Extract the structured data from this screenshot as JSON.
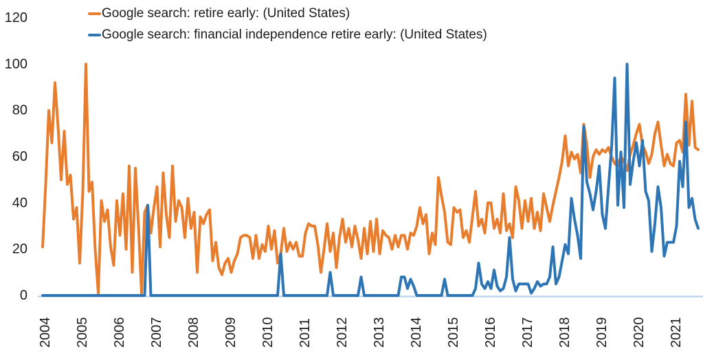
{
  "legend": {
    "items": [
      {
        "label": "Google search: retire early: (United States)",
        "color": "#E87D2E"
      },
      {
        "label": "Google search: financial independence retire early: (United States)",
        "color": "#2E75B6"
      }
    ]
  },
  "chart_data": {
    "type": "line",
    "title": "",
    "xlabel": "",
    "ylabel": "",
    "x_frequency": "monthly",
    "x_start": "2004-01",
    "x_end": "2021-09",
    "x_tick_labels": [
      "2004",
      "2005",
      "2006",
      "2007",
      "2008",
      "2009",
      "2010",
      "2011",
      "2012",
      "2013",
      "2014",
      "2015",
      "2016",
      "2017",
      "2018",
      "2019",
      "2020",
      "2021"
    ],
    "y_ticks": [
      0,
      20,
      40,
      60,
      80,
      100,
      120
    ],
    "ylim": [
      0,
      120
    ],
    "grid": false,
    "legend_position": "top-left",
    "axis_line_color": "#BDD7EE",
    "text_color": "#1c1c1c",
    "background_color": "#ffffff",
    "series": [
      {
        "name": "Google search: retire early: (United States)",
        "color": "#E87D2E",
        "values": [
          21,
          48,
          80,
          66,
          92,
          73,
          50,
          71,
          48,
          52,
          33,
          38,
          14,
          45,
          100,
          45,
          49,
          20,
          1,
          41,
          32,
          37,
          21,
          13,
          41,
          26,
          44,
          20,
          56,
          10,
          55,
          30,
          1,
          36,
          39,
          27,
          38,
          47,
          21,
          53,
          35,
          25,
          56,
          32,
          41,
          38,
          25,
          42,
          29,
          36,
          10,
          34,
          31,
          35,
          37,
          15,
          23,
          12,
          9,
          14,
          16,
          10,
          15,
          18,
          25,
          26,
          26,
          25,
          16,
          26,
          16,
          22,
          19,
          30,
          20,
          28,
          14,
          18,
          29,
          19,
          23,
          20,
          23,
          17,
          17,
          27,
          31,
          30,
          30,
          22,
          10,
          20,
          31,
          19,
          27,
          12,
          25,
          33,
          23,
          29,
          21,
          30,
          24,
          16,
          29,
          18,
          32,
          19,
          33,
          18,
          28,
          26,
          25,
          20,
          26,
          21,
          26,
          26,
          20,
          27,
          26,
          30,
          38,
          31,
          35,
          18,
          27,
          22,
          51,
          43,
          36,
          23,
          22,
          38,
          36,
          37,
          25,
          28,
          23,
          34,
          45,
          30,
          33,
          27,
          40,
          40,
          29,
          33,
          27,
          44,
          28,
          31,
          25,
          47,
          41,
          29,
          41,
          32,
          42,
          29,
          36,
          28,
          44,
          38,
          32,
          39,
          45,
          51,
          58,
          69,
          56,
          62,
          59,
          61,
          53,
          74,
          65,
          51,
          60,
          63,
          61,
          63,
          62,
          64,
          60,
          57,
          56,
          60,
          58,
          54,
          61,
          65,
          70,
          74,
          65,
          62,
          57,
          61,
          70,
          75,
          65,
          56,
          61,
          57,
          56,
          66,
          67,
          62,
          87,
          65,
          84,
          64,
          63
        ]
      },
      {
        "name": "Google search: financial independence retire early: (United States)",
        "color": "#2E75B6",
        "values": [
          0,
          0,
          0,
          0,
          0,
          0,
          0,
          0,
          0,
          0,
          0,
          0,
          0,
          0,
          0,
          0,
          0,
          0,
          0,
          0,
          0,
          0,
          0,
          0,
          0,
          0,
          0,
          0,
          0,
          0,
          0,
          0,
          0,
          0,
          39,
          0,
          0,
          0,
          0,
          0,
          0,
          0,
          0,
          0,
          0,
          0,
          0,
          0,
          0,
          0,
          0,
          0,
          0,
          0,
          0,
          0,
          0,
          0,
          0,
          0,
          0,
          0,
          0,
          0,
          0,
          0,
          0,
          0,
          0,
          0,
          0,
          0,
          0,
          0,
          0,
          0,
          0,
          18,
          0,
          0,
          0,
          0,
          0,
          0,
          0,
          0,
          0,
          0,
          0,
          0,
          0,
          0,
          0,
          10,
          0,
          0,
          0,
          0,
          0,
          0,
          0,
          0,
          0,
          8,
          0,
          0,
          0,
          0,
          0,
          0,
          0,
          0,
          0,
          0,
          0,
          0,
          8,
          8,
          3,
          7,
          4,
          0,
          0,
          0,
          0,
          0,
          0,
          0,
          0,
          0,
          7,
          0,
          0,
          0,
          0,
          0,
          0,
          0,
          0,
          0,
          3,
          14,
          5,
          3,
          6,
          3,
          11,
          4,
          2,
          3,
          8,
          25,
          7,
          2,
          5,
          5,
          5,
          5,
          1,
          3,
          6,
          4,
          5,
          5,
          8,
          21,
          5,
          8,
          15,
          22,
          18,
          42,
          33,
          26,
          16,
          73,
          49,
          44,
          37,
          45,
          56,
          35,
          29,
          47,
          64,
          94,
          39,
          62,
          38,
          100,
          48,
          58,
          66,
          56,
          67,
          45,
          41,
          19,
          31,
          47,
          38,
          17,
          23,
          23,
          23,
          30,
          58,
          47,
          75,
          38,
          42,
          33,
          29
        ]
      }
    ]
  }
}
